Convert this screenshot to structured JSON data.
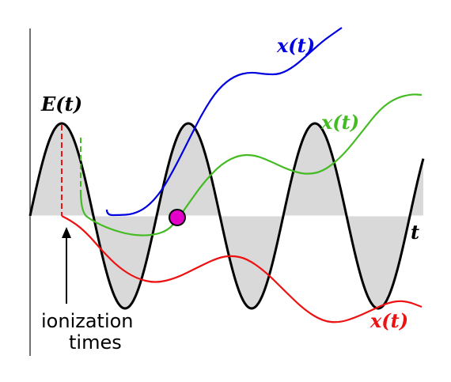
{
  "labels": {
    "field": "E(t)",
    "time_axis": "t",
    "traj_blue": "x(t)",
    "traj_green": "x(t)",
    "traj_red": "x(t)",
    "ionization_line1": "ionization",
    "ionization_line2": "times"
  },
  "colors": {
    "field_curve": "#000000",
    "field_fill": "#d9d9d9",
    "traj_blue": "#0000e0",
    "traj_green": "#44bb22",
    "traj_red": "#ee1111",
    "dot_fill": "#e400c8",
    "dot_stroke": "#000000"
  }
}
